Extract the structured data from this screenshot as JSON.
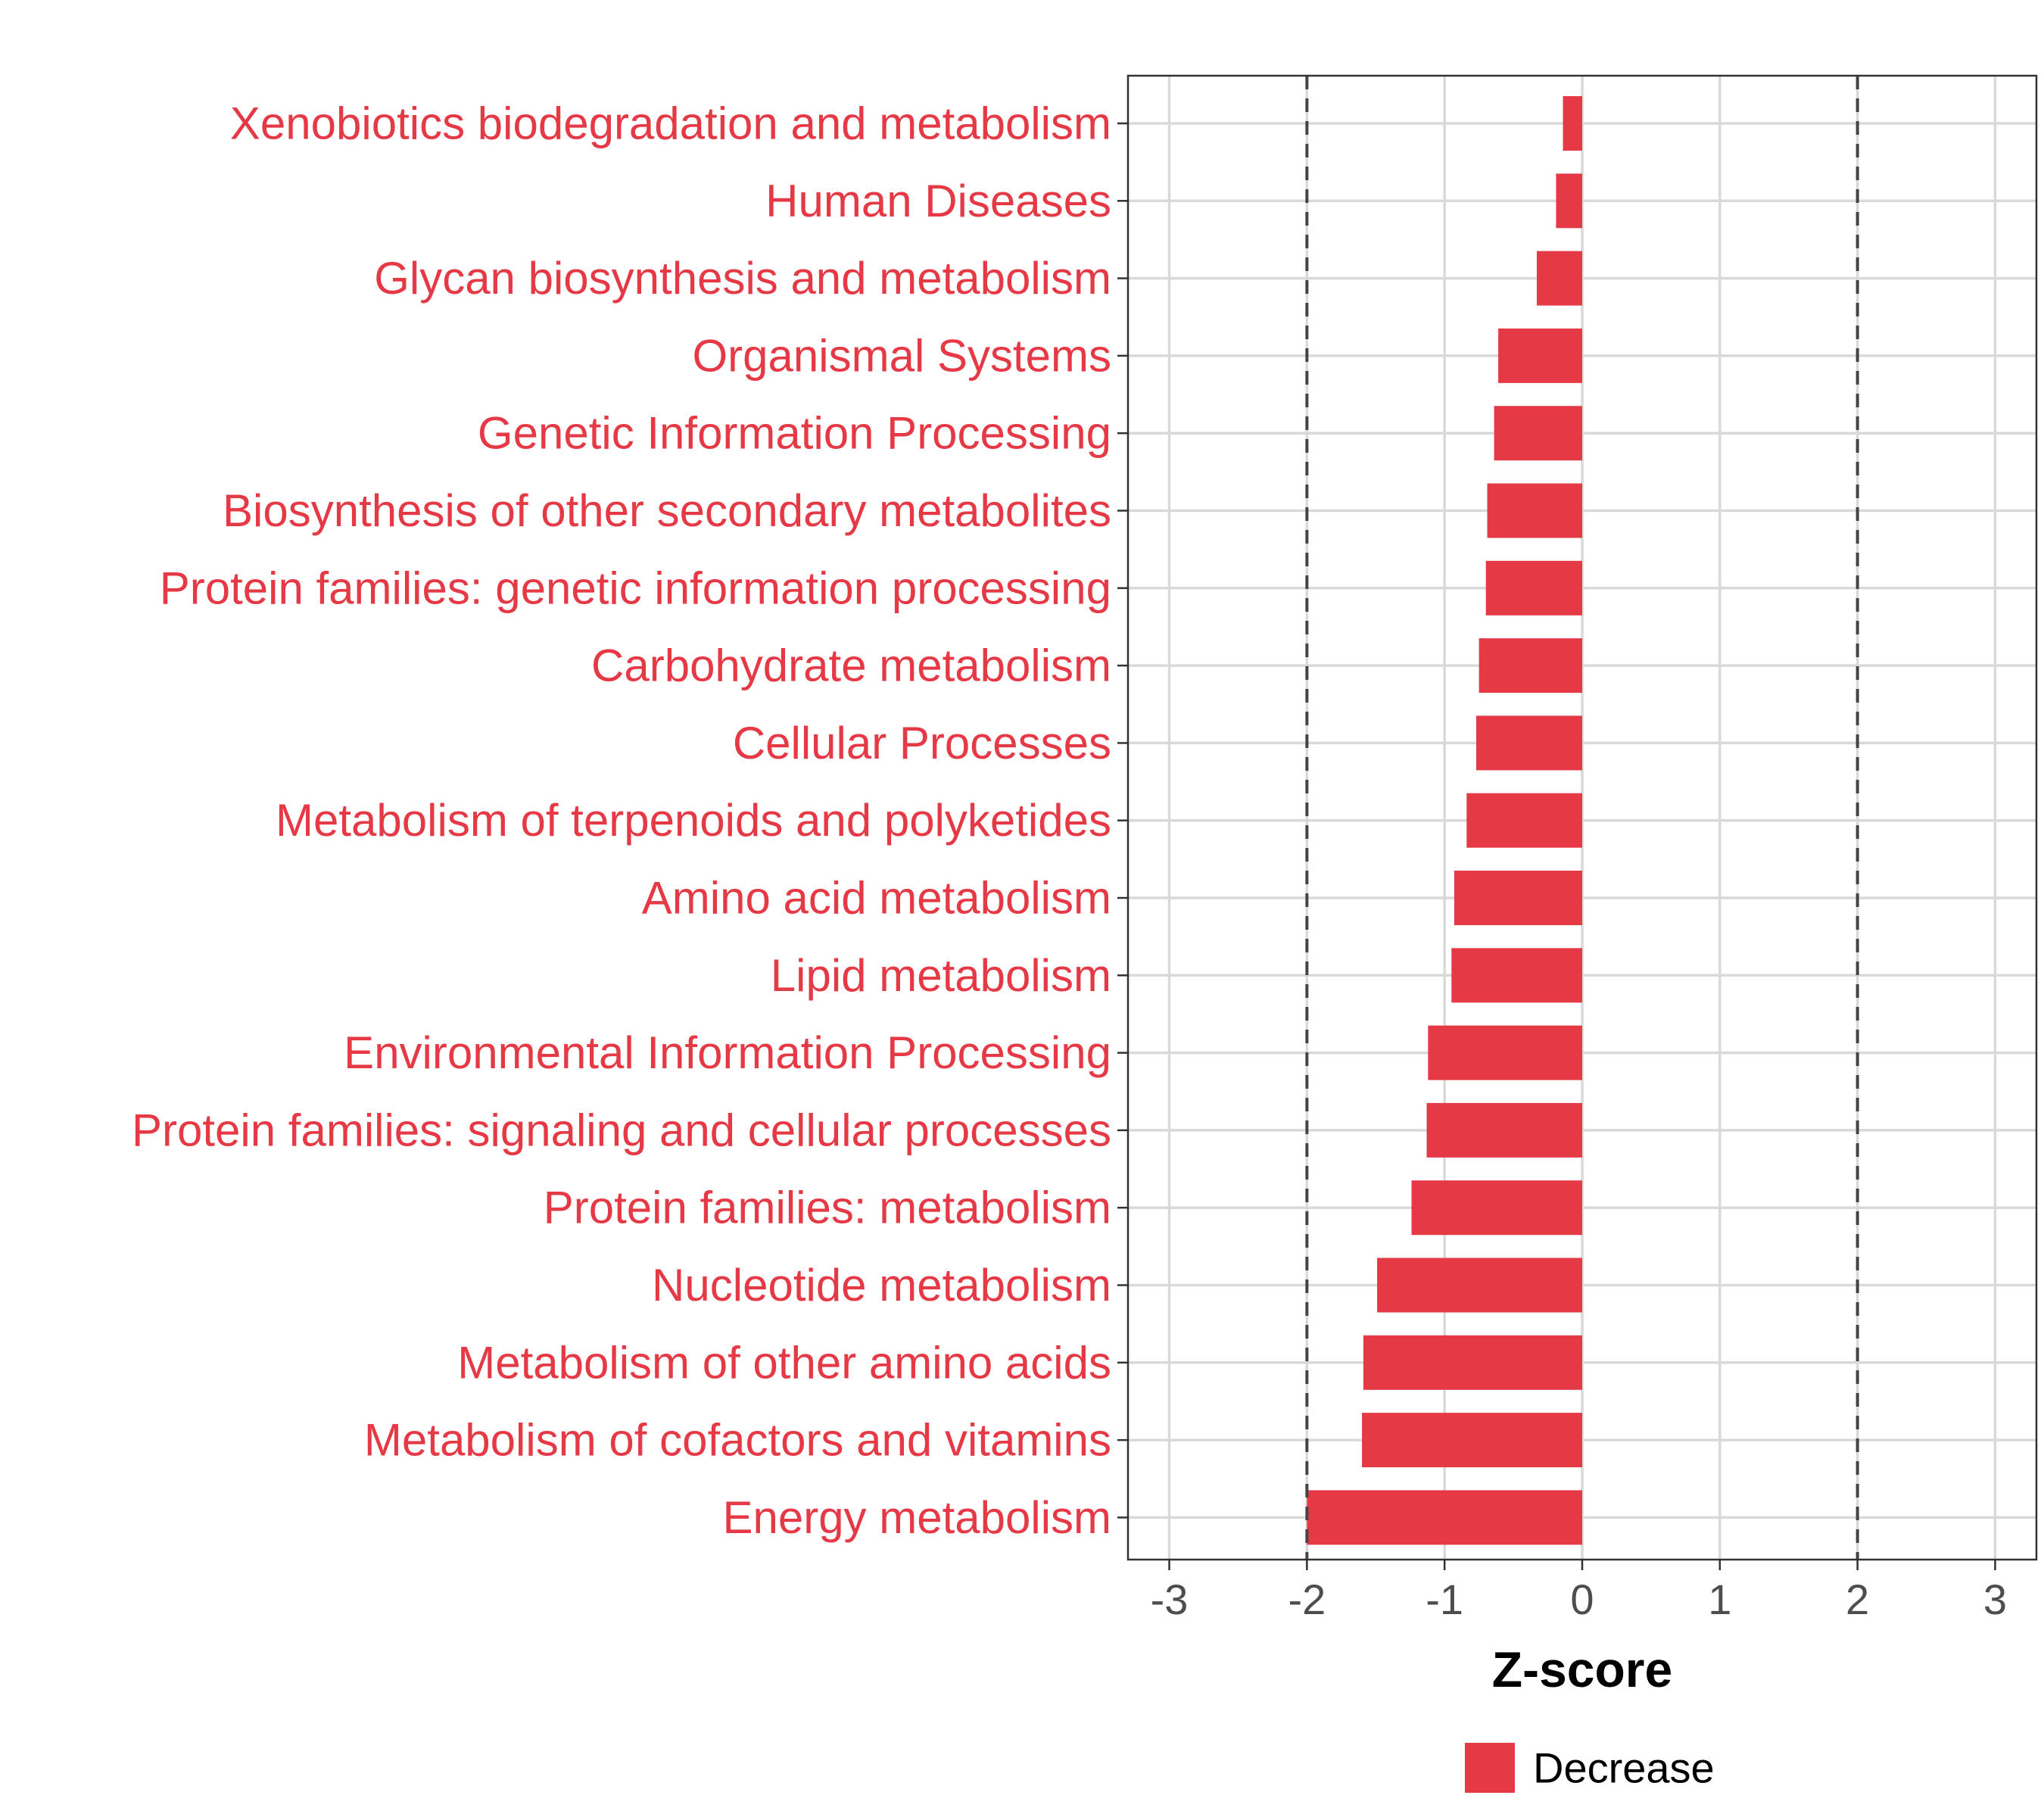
{
  "chart_data": {
    "type": "bar",
    "orientation": "horizontal",
    "categories": [
      "Xenobiotics biodegradation and metabolism",
      "Human Diseases",
      "Glycan biosynthesis and metabolism",
      "Organismal Systems",
      "Genetic Information Processing",
      "Biosynthesis of other secondary metabolites",
      "Protein families: genetic information processing",
      "Carbohydrate metabolism",
      "Cellular Processes",
      "Metabolism of terpenoids and polyketides",
      "Amino acid metabolism",
      "Lipid metabolism",
      "Environmental Information Processing",
      "Protein families: signaling and cellular processes",
      "Protein families: metabolism",
      "Nucleotide metabolism",
      "Metabolism of other amino acids",
      "Metabolism of cofactors and vitamins",
      "Energy metabolism"
    ],
    "series": [
      {
        "name": "Decrease",
        "color": "#e63946",
        "values": [
          -0.14,
          -0.19,
          -0.33,
          -0.61,
          -0.64,
          -0.69,
          -0.7,
          -0.75,
          -0.77,
          -0.84,
          -0.93,
          -0.95,
          -1.12,
          -1.13,
          -1.24,
          -1.49,
          -1.59,
          -1.6,
          -2.0
        ]
      }
    ],
    "xlabel": "Z-score",
    "ylabel": "",
    "xlim": [
      -3.3,
      3.3
    ],
    "xticks": [
      -3,
      -2,
      -1,
      0,
      1,
      2,
      3
    ],
    "xtick_labels": [
      "-3",
      "-2",
      "-1",
      "0",
      "1",
      "2",
      "3"
    ],
    "reference_lines": [
      -2,
      2
    ],
    "grid": true,
    "legend": {
      "position": "bottom",
      "entries": [
        "Decrease"
      ]
    },
    "label_color": "#e63946",
    "bar_color": "#e63946"
  }
}
